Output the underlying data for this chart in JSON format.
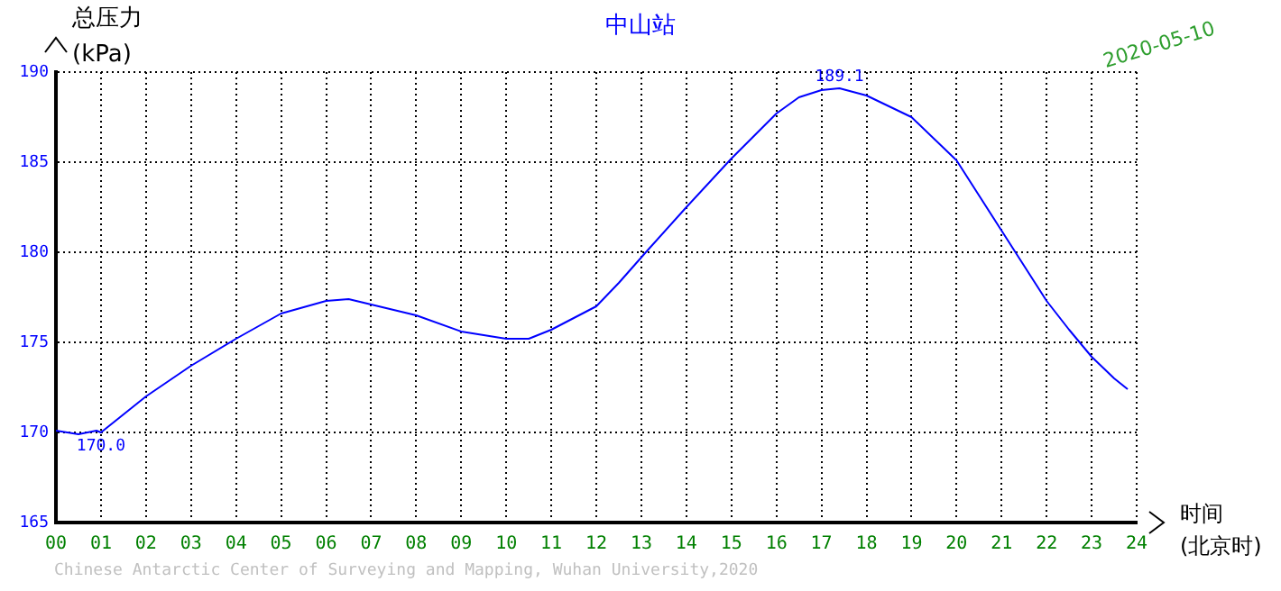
{
  "chart_data": {
    "type": "line",
    "title": "中山站",
    "xlabel": "时间\n(北京时)",
    "ylabel": "总压力\n(kPa)",
    "x": [
      0,
      0.5,
      0.9,
      1.0,
      1.5,
      2,
      3,
      4,
      5,
      6,
      6.5,
      7,
      8,
      9,
      10,
      10.5,
      11,
      12,
      12.5,
      13.1,
      14,
      15,
      16,
      16.5,
      17,
      17.4,
      18,
      19,
      20,
      21,
      22,
      22.5,
      23,
      23.5,
      23.8
    ],
    "series": [
      {
        "color": "#0000ff",
        "values": [
          170.1,
          169.9,
          170.1,
          170.0,
          171.0,
          172.0,
          173.7,
          175.2,
          176.6,
          177.3,
          177.4,
          177.1,
          176.5,
          175.6,
          175.2,
          175.2,
          175.7,
          177.0,
          178.3,
          180.0,
          182.5,
          185.2,
          187.7,
          188.6,
          189.0,
          189.1,
          188.7,
          187.5,
          185.1,
          181.2,
          177.3,
          175.7,
          174.2,
          173.0,
          172.4
        ]
      }
    ],
    "xlim": [
      0,
      24
    ],
    "xticks": [
      {
        "value": 0,
        "label": "00"
      },
      {
        "value": 1,
        "label": "01"
      },
      {
        "value": 2,
        "label": "02"
      },
      {
        "value": 3,
        "label": "03"
      },
      {
        "value": 4,
        "label": "04"
      },
      {
        "value": 5,
        "label": "05"
      },
      {
        "value": 6,
        "label": "06"
      },
      {
        "value": 7,
        "label": "07"
      },
      {
        "value": 8,
        "label": "08"
      },
      {
        "value": 9,
        "label": "09"
      },
      10,
      11,
      12,
      13,
      14,
      15,
      16,
      17,
      18,
      19,
      20,
      21,
      22,
      23,
      24
    ],
    "ylim": [
      165,
      190
    ],
    "yticks": [
      165,
      170,
      175,
      180,
      185,
      190
    ],
    "grid": true,
    "legend": false,
    "marker": "none",
    "line_style": "solid",
    "annotations": [
      {
        "text": "189.1",
        "x": 17.4,
        "y": 189.1
      },
      {
        "text": "170.0",
        "x": 1.0,
        "y": 170.0
      },
      "2020-05-10",
      "Chinese Antarctic Center of Surveying and Mapping, Wuhan University,2020"
    ]
  }
}
